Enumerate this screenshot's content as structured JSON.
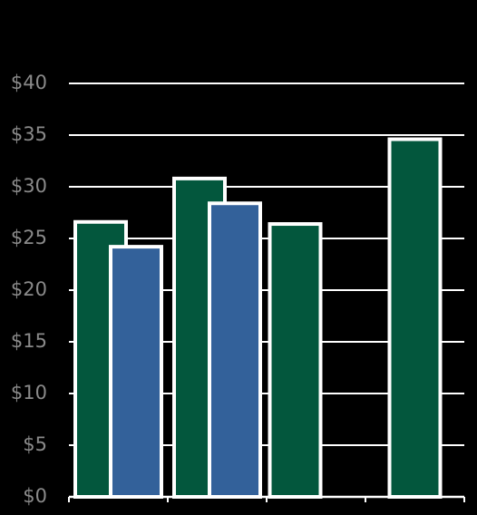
{
  "chart_data": {
    "type": "bar",
    "title": "",
    "xlabel": "",
    "ylabel": "",
    "ylim": [
      0,
      40
    ],
    "yticks": [
      0,
      5,
      10,
      15,
      20,
      25,
      30,
      35,
      40
    ],
    "ytick_labels": [
      "$0",
      "$5",
      "$10",
      "$15",
      "$20",
      "$25",
      "$30",
      "$35",
      "$40"
    ],
    "grid": true,
    "legend": "none",
    "categories": [
      "",
      "",
      "",
      ""
    ],
    "series": [
      {
        "color": "#03573d",
        "values": [
          26.6,
          30.8,
          26.4,
          34.6
        ]
      },
      {
        "color": "#33619a",
        "values": [
          24.2,
          28.4,
          null,
          null
        ]
      }
    ]
  }
}
